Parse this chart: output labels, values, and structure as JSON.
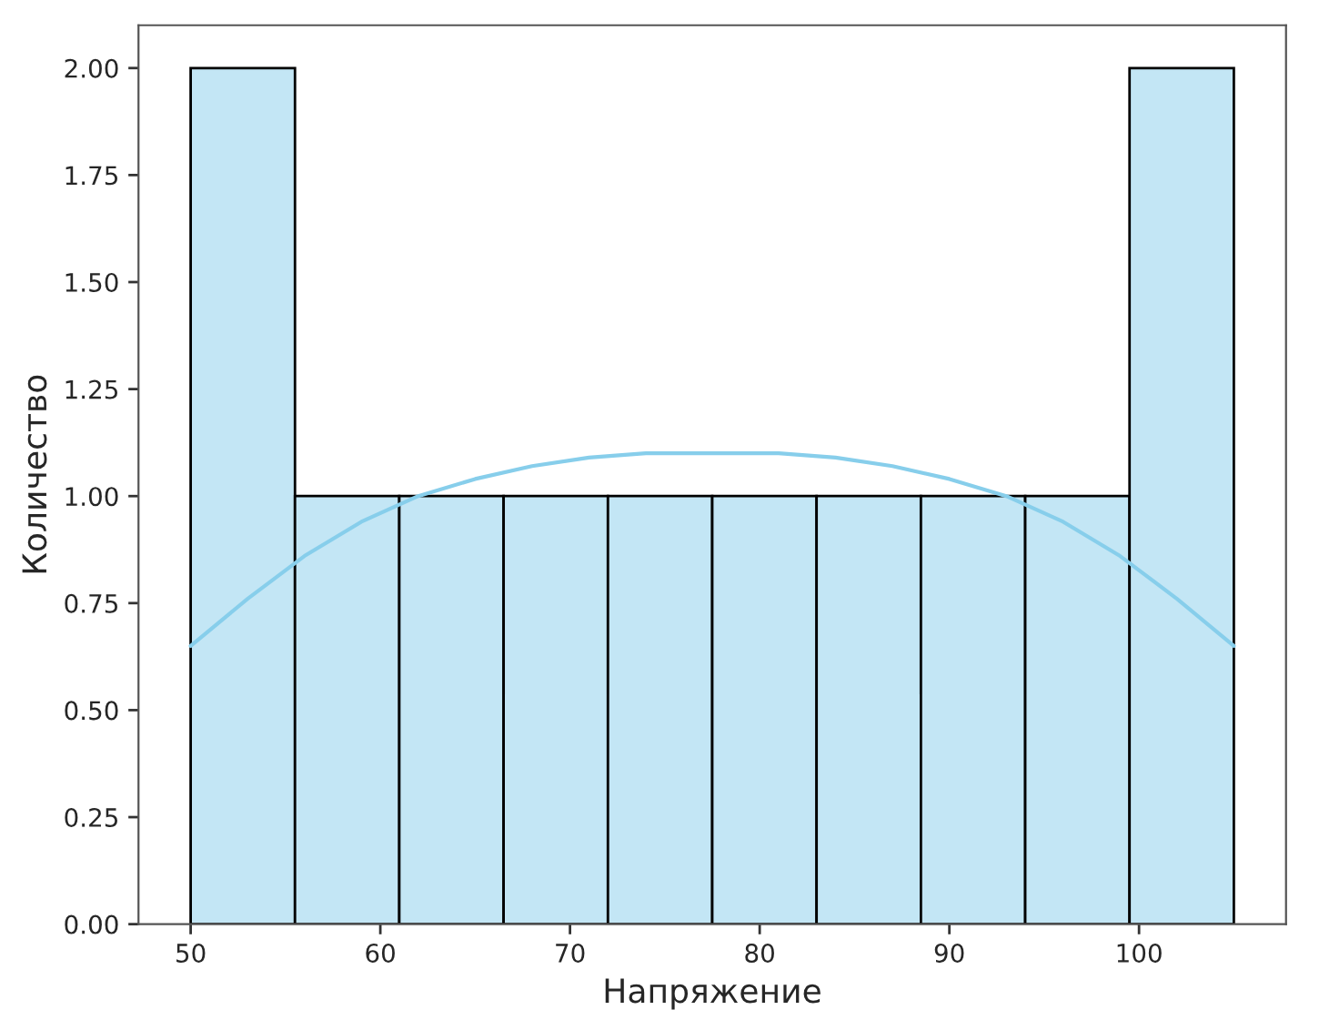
{
  "chart_data": {
    "type": "histogram",
    "xlabel": "Напряжение",
    "ylabel": "Количество",
    "bins": [
      50,
      55.5,
      61,
      66.5,
      72,
      77.5,
      83,
      88.5,
      94,
      99.5,
      105
    ],
    "values": [
      2,
      1,
      1,
      1,
      1,
      1,
      1,
      1,
      1,
      2
    ],
    "color": "#c3e6f5",
    "series": [
      {
        "type": "line",
        "color": "#87ceeb",
        "x": [
          50,
          53,
          56,
          59,
          62,
          65,
          68,
          71,
          74,
          77.5,
          81,
          84,
          87,
          90,
          93,
          96,
          99,
          102,
          105
        ],
        "values": [
          0.65,
          0.76,
          0.86,
          0.94,
          1.0,
          1.04,
          1.07,
          1.09,
          1.1,
          1.1,
          1.1,
          1.09,
          1.07,
          1.04,
          1.0,
          0.94,
          0.86,
          0.76,
          0.65
        ]
      }
    ],
    "xlim": [
      47.25,
      107.75
    ],
    "ylim": [
      0,
      2.1
    ],
    "xticks": [
      50,
      60,
      70,
      80,
      90,
      100
    ],
    "yticks": [
      {
        "value": 0,
        "label": "0.00"
      },
      {
        "value": 0.25,
        "label": "0.25"
      },
      {
        "value": 0.5,
        "label": "0.50"
      },
      {
        "value": 0.75,
        "label": "0.75"
      },
      {
        "value": 1,
        "label": "1.00"
      },
      {
        "value": 1.25,
        "label": "1.25"
      },
      {
        "value": 1.5,
        "label": "1.50"
      },
      {
        "value": 1.75,
        "label": "1.75"
      },
      {
        "value": 2,
        "label": "2.00"
      }
    ],
    "grid": false
  }
}
